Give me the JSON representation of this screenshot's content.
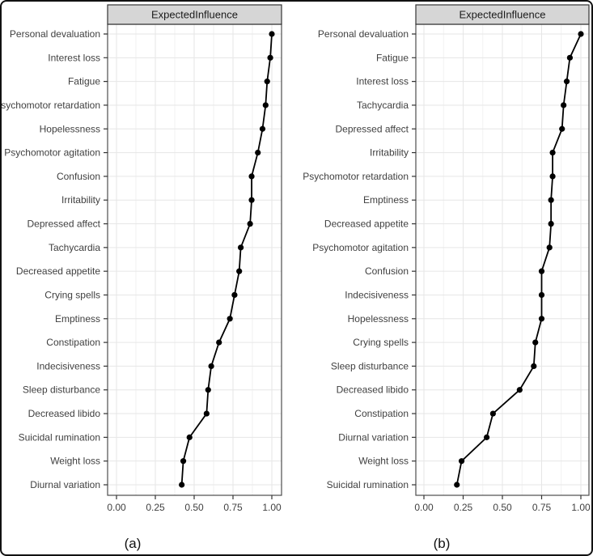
{
  "figure": {
    "background": "#ffffff",
    "outer_border_color": "#111111"
  },
  "style": {
    "strip_fill": "#d6d6d6",
    "strip_border": "#333333",
    "strip_text_color": "#1a1a1a",
    "panel_border": "#4d4d4d",
    "grid_major": "#e6e6e6",
    "grid_minor": "#f2f2f2",
    "axis_text_color": "#404040",
    "tick_color": "#333333",
    "point_color": "#000000",
    "line_color": "#000000",
    "caption_color": "#111111"
  },
  "chart_data": [
    {
      "type": "scatter",
      "subtype": "horizontal-dot-line-plot",
      "title": "ExpectedInfluence",
      "caption": "(a)",
      "legend": "none",
      "grid": true,
      "xlim": [
        0,
        1
      ],
      "x_ticks": [
        "0.00",
        "0.25",
        "0.50",
        "0.75",
        "1.00"
      ],
      "x_tick_values": [
        0,
        0.25,
        0.5,
        0.75,
        1
      ],
      "x_minor_values": [
        0.125,
        0.375,
        0.625,
        0.875
      ],
      "categories": [
        "Personal devaluation",
        "Interest loss",
        "Fatigue",
        "Psychomotor retardation",
        "Hopelessness",
        "Psychomotor agitation",
        "Confusion",
        "Irritability",
        "Depressed affect",
        "Tachycardia",
        "Decreased appetite",
        "Crying spells",
        "Emptiness",
        "Constipation",
        "Indecisiveness",
        "Sleep disturbance",
        "Decreased libido",
        "Suicidal rumination",
        "Weight loss",
        "Diurnal variation"
      ],
      "values": [
        1.0,
        0.99,
        0.97,
        0.96,
        0.94,
        0.91,
        0.87,
        0.87,
        0.86,
        0.8,
        0.79,
        0.76,
        0.73,
        0.66,
        0.61,
        0.59,
        0.58,
        0.47,
        0.43,
        0.42
      ]
    },
    {
      "type": "scatter",
      "subtype": "horizontal-dot-line-plot",
      "title": "ExpectedInfluence",
      "caption": "(b)",
      "legend": "none",
      "grid": true,
      "xlim": [
        0,
        1
      ],
      "x_ticks": [
        "0.00",
        "0.25",
        "0.50",
        "0.75",
        "1.00"
      ],
      "x_tick_values": [
        0,
        0.25,
        0.5,
        0.75,
        1
      ],
      "x_minor_values": [
        0.125,
        0.375,
        0.625,
        0.875
      ],
      "categories": [
        "Personal devaluation",
        "Fatigue",
        "Interest loss",
        "Tachycardia",
        "Depressed affect",
        "Irritability",
        "Psychomotor retardation",
        "Emptiness",
        "Decreased appetite",
        "Psychomotor agitation",
        "Confusion",
        "Indecisiveness",
        "Hopelessness",
        "Crying spells",
        "Sleep disturbance",
        "Decreased libido",
        "Constipation",
        "Diurnal variation",
        "Weight loss",
        "Suicidal rumination"
      ],
      "values": [
        1.0,
        0.93,
        0.91,
        0.89,
        0.88,
        0.82,
        0.82,
        0.81,
        0.81,
        0.8,
        0.75,
        0.75,
        0.75,
        0.71,
        0.7,
        0.61,
        0.44,
        0.4,
        0.24,
        0.21
      ]
    }
  ]
}
